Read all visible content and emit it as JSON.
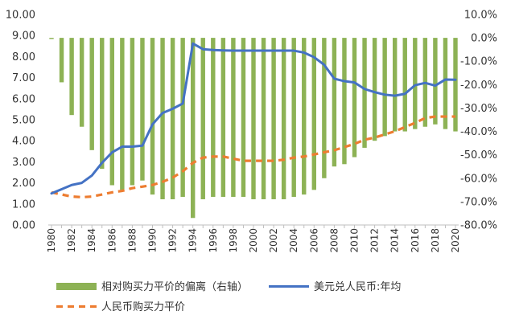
{
  "chart_data": {
    "type": "bar",
    "x": [
      1980,
      1981,
      1982,
      1983,
      1984,
      1985,
      1986,
      1987,
      1988,
      1989,
      1990,
      1991,
      1992,
      1993,
      1994,
      1995,
      1996,
      1997,
      1998,
      1999,
      2000,
      2001,
      2002,
      2003,
      2004,
      2005,
      2006,
      2007,
      2008,
      2009,
      2010,
      2011,
      2012,
      2013,
      2014,
      2015,
      2016,
      2017,
      2018,
      2019,
      2020
    ],
    "x_tick_labels": [
      "1980",
      "1982",
      "1984",
      "1986",
      "1988",
      "1990",
      "1992",
      "1994",
      "1996",
      "1998",
      "2000",
      "2002",
      "2004",
      "2006",
      "2008",
      "2010",
      "2012",
      "2014",
      "2016",
      "2018",
      "2020"
    ],
    "left_axis": {
      "range": [
        0,
        10
      ],
      "tick_labels": [
        "0.00",
        "1.00",
        "2.00",
        "3.00",
        "4.00",
        "5.00",
        "6.00",
        "7.00",
        "8.00",
        "9.00",
        "10.00"
      ]
    },
    "right_axis": {
      "range": [
        -80,
        10
      ],
      "tick_labels": [
        "-80.0%",
        "-70.0%",
        "-60.0%",
        "-50.0%",
        "-40.0%",
        "-30.0%",
        "-20.0%",
        "-10.0%",
        "0.0%",
        "10.0%"
      ]
    },
    "grid": false,
    "legend_position": "bottom",
    "series": [
      {
        "name": "相对购买力平价的偏离（右轴）",
        "type": "bar",
        "axis": "right",
        "color": "#8db255",
        "values": [
          -0.5,
          -19,
          -33,
          -38,
          -48,
          -56,
          -63,
          -65,
          -63,
          -61,
          -67,
          -69,
          -69,
          -68,
          -77,
          -69,
          -68,
          -68,
          -68,
          -68,
          -69,
          -69,
          -69,
          -69,
          -68,
          -67,
          -65,
          -60,
          -55,
          -54,
          -51,
          -47,
          -44,
          -42,
          -40,
          -40,
          -39,
          -38,
          -37,
          -39,
          -40
        ]
      },
      {
        "name": "美元兑人民币:年均",
        "type": "line",
        "axis": "left",
        "color": "#4472c4",
        "values": [
          1.5,
          1.7,
          1.9,
          2.0,
          2.35,
          2.95,
          3.45,
          3.72,
          3.72,
          3.77,
          4.78,
          5.32,
          5.52,
          5.77,
          8.62,
          8.35,
          8.31,
          8.29,
          8.28,
          8.28,
          8.28,
          8.28,
          8.28,
          8.28,
          8.28,
          8.19,
          7.97,
          7.61,
          6.95,
          6.83,
          6.77,
          6.46,
          6.31,
          6.19,
          6.14,
          6.23,
          6.64,
          6.75,
          6.62,
          6.91,
          6.9
        ]
      },
      {
        "name": "人民币购买力平价",
        "type": "line",
        "axis": "left",
        "color": "#ed7d31",
        "dashed": true,
        "values": [
          1.55,
          1.45,
          1.35,
          1.32,
          1.35,
          1.45,
          1.55,
          1.62,
          1.75,
          1.82,
          1.9,
          2.05,
          2.25,
          2.55,
          2.95,
          3.2,
          3.25,
          3.25,
          3.15,
          3.05,
          3.05,
          3.05,
          3.05,
          3.1,
          3.2,
          3.25,
          3.35,
          3.45,
          3.55,
          3.7,
          3.85,
          4.05,
          4.15,
          4.3,
          4.45,
          4.65,
          4.85,
          5.08,
          5.15,
          5.15,
          5.15
        ]
      }
    ]
  }
}
